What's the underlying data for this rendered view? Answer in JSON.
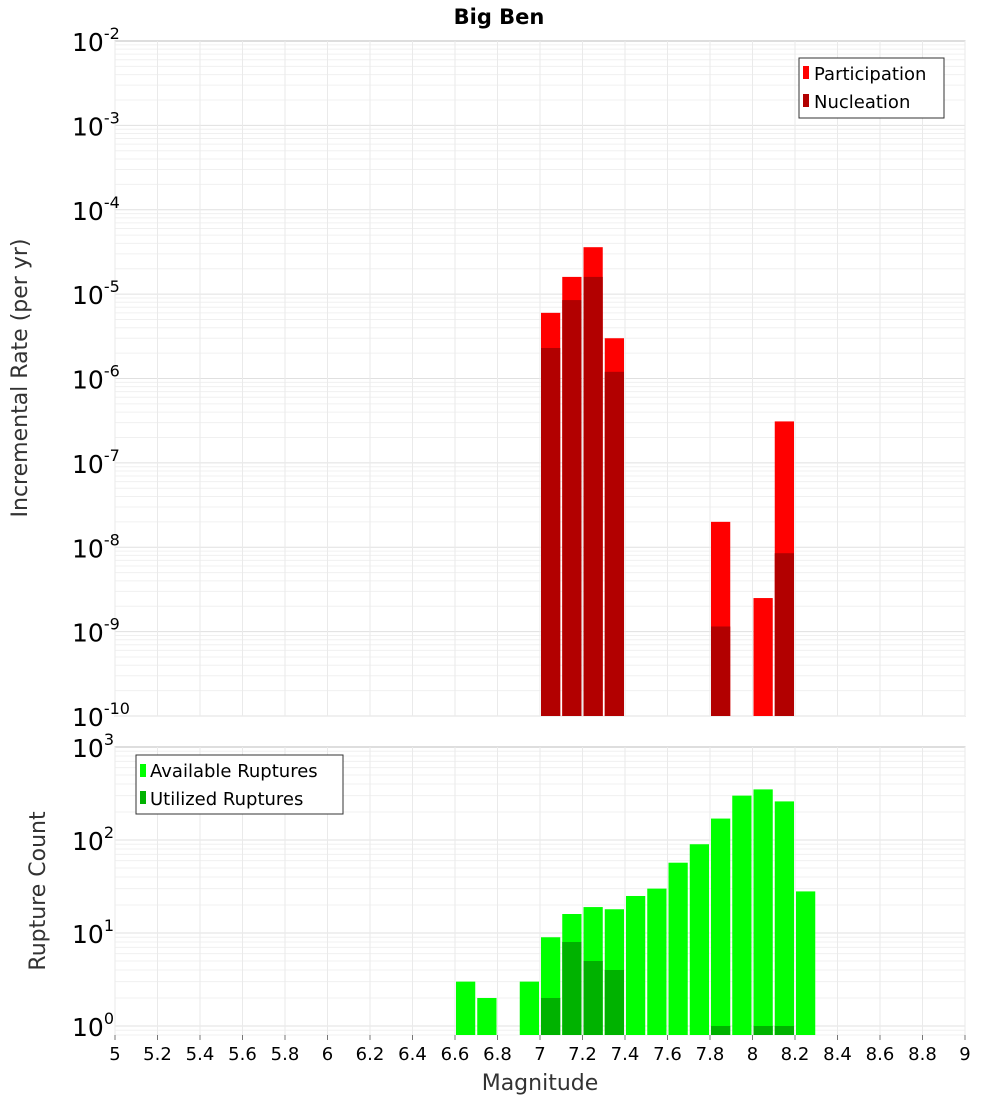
{
  "chart_data": [
    {
      "type": "bar",
      "title": "Big Ben",
      "xlabel": "Magnitude",
      "ylabel": "Incremental Rate (per yr)",
      "yscale": "log",
      "ylim": [
        1e-10,
        0.01
      ],
      "xlim": [
        5,
        9
      ],
      "bar_width": 0.1,
      "grid": true,
      "legend_position": "top-right",
      "yticks": [
        {
          "base": "10",
          "exp": "-10"
        },
        {
          "base": "10",
          "exp": "-9"
        },
        {
          "base": "10",
          "exp": "-8"
        },
        {
          "base": "10",
          "exp": "-7"
        },
        {
          "base": "10",
          "exp": "-6"
        },
        {
          "base": "10",
          "exp": "-5"
        },
        {
          "base": "10",
          "exp": "-4"
        },
        {
          "base": "10",
          "exp": "-3"
        },
        {
          "base": "10",
          "exp": "-2"
        }
      ],
      "series": [
        {
          "name": "Participation",
          "color": "#ff0000",
          "x": [
            7.05,
            7.15,
            7.25,
            7.35,
            7.85,
            8.05,
            8.15
          ],
          "values": [
            6e-06,
            1.6e-05,
            3.6e-05,
            3e-06,
            2e-08,
            2.5e-09,
            3.1e-07
          ]
        },
        {
          "name": "Nucleation",
          "color": "#b20000",
          "x": [
            7.05,
            7.15,
            7.25,
            7.35,
            7.85,
            8.15
          ],
          "values": [
            2.3e-06,
            8.5e-06,
            1.6e-05,
            1.2e-06,
            1.15e-09,
            8.5e-09
          ]
        }
      ]
    },
    {
      "type": "bar",
      "xlabel": "Magnitude",
      "ylabel": "Rupture Count",
      "yscale": "log",
      "ylim": [
        0.8,
        1000
      ],
      "xlim": [
        5,
        9
      ],
      "bar_width": 0.1,
      "grid": true,
      "legend_position": "top-left",
      "xticks": [
        "5",
        "5.2",
        "5.4",
        "5.6",
        "5.8",
        "6",
        "6.2",
        "6.4",
        "6.6",
        "6.8",
        "7",
        "7.2",
        "7.4",
        "7.6",
        "7.8",
        "8",
        "8.2",
        "8.4",
        "8.6",
        "8.8",
        "9"
      ],
      "yticks": [
        {
          "base": "10",
          "exp": "0"
        },
        {
          "base": "10",
          "exp": "1"
        },
        {
          "base": "10",
          "exp": "2"
        },
        {
          "base": "10",
          "exp": "3"
        }
      ],
      "series": [
        {
          "name": "Available Ruptures",
          "color": "#00ff00",
          "x": [
            6.65,
            6.75,
            6.95,
            7.05,
            7.15,
            7.25,
            7.35,
            7.45,
            7.55,
            7.65,
            7.75,
            7.85,
            7.95,
            8.05,
            8.15,
            8.25
          ],
          "values": [
            3,
            2,
            3,
            9,
            16,
            19,
            18,
            25,
            30,
            57,
            90,
            170,
            300,
            350,
            260,
            28
          ]
        },
        {
          "name": "Utilized Ruptures",
          "color": "#00b200",
          "x": [
            7.05,
            7.15,
            7.25,
            7.35,
            7.85,
            8.05,
            8.15
          ],
          "values": [
            2,
            8,
            5,
            4,
            1,
            1,
            1
          ]
        }
      ]
    }
  ]
}
